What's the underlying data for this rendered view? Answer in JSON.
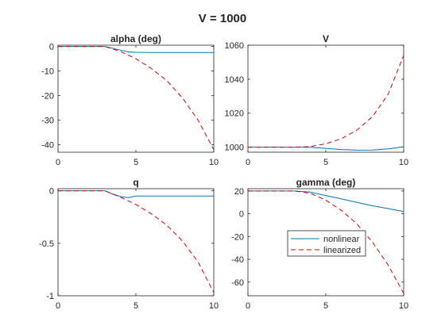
{
  "figure_title": "V = 1000",
  "colors": {
    "nonlinear": "#0072BD",
    "linearized": "#D00000",
    "axes": "#262626"
  },
  "chart_data": [
    {
      "type": "line",
      "title": "alpha (deg)",
      "xlim": [
        0,
        10
      ],
      "ylim": [
        -43,
        0.5
      ],
      "xticks": [
        0,
        5,
        10
      ],
      "yticks": [
        0,
        -10,
        -20,
        -30,
        -40
      ],
      "xtick_labels": [
        "0",
        "5",
        "10"
      ],
      "ytick_labels": [
        "0",
        "-10",
        "-20",
        "-30",
        "-40"
      ],
      "series": [
        {
          "key": "nonlinear",
          "style": "solid",
          "x": [
            0,
            3,
            4,
            4.5,
            5,
            6,
            7,
            8,
            9,
            10
          ],
          "y": [
            0,
            0,
            -1.5,
            -2.2,
            -2.4,
            -2.5,
            -2.5,
            -2.5,
            -2.5,
            -2.5
          ]
        },
        {
          "key": "linearized",
          "style": "dashed",
          "x": [
            0,
            3,
            4,
            5,
            6,
            7,
            8,
            9,
            10
          ],
          "y": [
            0,
            0,
            -2,
            -5,
            -9,
            -14,
            -21,
            -30,
            -42
          ]
        }
      ]
    },
    {
      "type": "line",
      "title": "V",
      "xlim": [
        0,
        10
      ],
      "ylim": [
        997,
        1060
      ],
      "xticks": [
        0,
        5,
        10
      ],
      "yticks": [
        1000,
        1020,
        1040,
        1060
      ],
      "xtick_labels": [
        "0",
        "5",
        "10"
      ],
      "ytick_labels": [
        "1000",
        "1020",
        "1040",
        "1060"
      ],
      "series": [
        {
          "key": "nonlinear",
          "style": "solid",
          "x": [
            0,
            3,
            4,
            5,
            6,
            7,
            8,
            9,
            10
          ],
          "y": [
            1000,
            1000,
            999.9,
            999.3,
            998.6,
            998.2,
            998.3,
            999,
            1000.2
          ]
        },
        {
          "key": "linearized",
          "style": "dashed",
          "x": [
            0,
            3,
            4,
            5,
            6,
            7,
            8,
            9,
            10
          ],
          "y": [
            1000,
            1000,
            1000.3,
            1002,
            1005,
            1010,
            1018,
            1031,
            1054
          ]
        }
      ]
    },
    {
      "type": "line",
      "title": "q",
      "xlim": [
        0,
        10
      ],
      "ylim": [
        -1,
        0.02
      ],
      "xticks": [
        0,
        5,
        10
      ],
      "yticks": [
        0,
        -0.5,
        -1
      ],
      "xtick_labels": [
        "0",
        "5",
        "10"
      ],
      "ytick_labels": [
        "0",
        "-0.5",
        "-1"
      ],
      "series": [
        {
          "key": "nonlinear",
          "style": "solid",
          "x": [
            0,
            3,
            3.5,
            4,
            4.5,
            5,
            6,
            7,
            8,
            9,
            10
          ],
          "y": [
            0,
            0,
            -0.03,
            -0.055,
            -0.065,
            -0.05,
            -0.05,
            -0.05,
            -0.05,
            -0.05,
            -0.05
          ]
        },
        {
          "key": "linearized",
          "style": "dashed",
          "x": [
            0,
            3,
            4,
            5,
            6,
            7,
            8,
            9,
            10
          ],
          "y": [
            0,
            0,
            -0.06,
            -0.13,
            -0.22,
            -0.33,
            -0.48,
            -0.68,
            -0.97
          ]
        }
      ]
    },
    {
      "type": "line",
      "title": "gamma (deg)",
      "xlim": [
        0,
        10
      ],
      "ylim": [
        -72,
        22
      ],
      "xticks": [
        0,
        5,
        10
      ],
      "yticks": [
        20,
        0,
        -20,
        -40,
        -60
      ],
      "xtick_labels": [
        "0",
        "5",
        "10"
      ],
      "ytick_labels": [
        "20",
        "0",
        "-20",
        "-40",
        "-60"
      ],
      "legend": {
        "placement": "center",
        "entries": [
          "nonlinear",
          "linearized"
        ]
      },
      "series": [
        {
          "key": "nonlinear",
          "name": "nonlinear",
          "style": "solid",
          "x": [
            0,
            3,
            4,
            5,
            6,
            7,
            8,
            9,
            10
          ],
          "y": [
            20,
            20,
            19,
            16,
            13,
            10,
            7,
            4.5,
            2
          ]
        },
        {
          "key": "linearized",
          "name": "linearized",
          "style": "dashed",
          "x": [
            0,
            3,
            4,
            5,
            6,
            7,
            8,
            9,
            10
          ],
          "y": [
            20,
            20,
            18,
            12,
            3,
            -9,
            -25,
            -45,
            -70
          ]
        }
      ]
    }
  ]
}
